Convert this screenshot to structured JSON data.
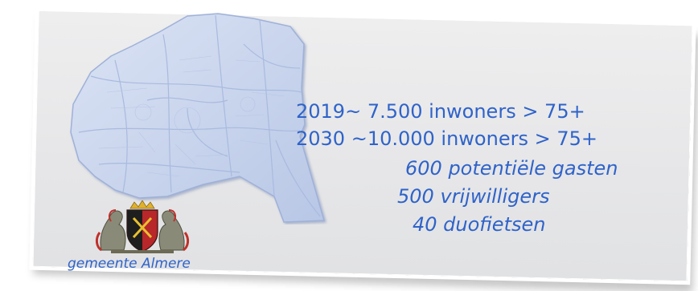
{
  "stats": {
    "line1": "2019~    7.500 inwoners > 75+",
    "line2": "2030  ~10.000 inwoners > 75+",
    "line3": "600 potentiële gasten",
    "line4": "500 vrijwilligers",
    "line5": "40 duofietsen"
  },
  "logo": {
    "caption": "gemeente Almere"
  },
  "colors": {
    "text": "#2f63c9",
    "card": "#e6e6e8",
    "map": "#c7d3ec"
  },
  "icons": {
    "map": "city-map",
    "crest": "coat-of-arms"
  }
}
